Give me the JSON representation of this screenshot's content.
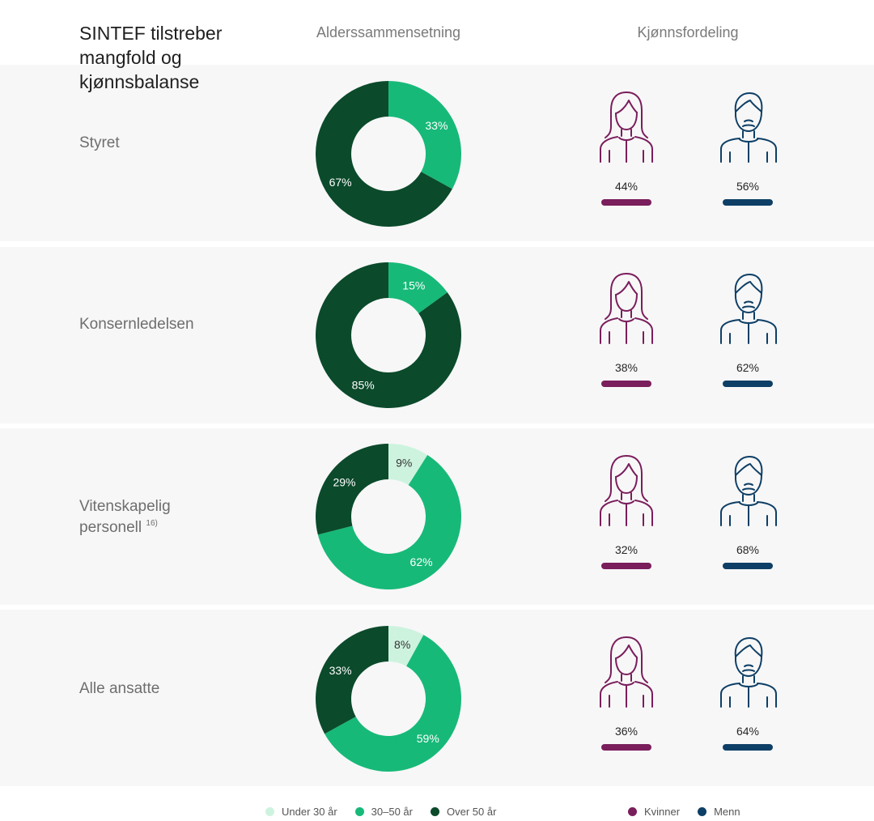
{
  "header": {
    "title": "SINTEF tilstreber mangfold og kjønnsbalanse",
    "age_heading": "Alderssammensetning",
    "gender_heading": "Kjønnsfordeling"
  },
  "colors": {
    "under30": "#cdf3df",
    "mid": "#17b978",
    "over50": "#0b4a2b",
    "women": "#7a1e5c",
    "men": "#0e3f66",
    "band": "#f7f7f7"
  },
  "rows": [
    {
      "label": "Styret",
      "note": ""
    },
    {
      "label": "Konsernledelsen",
      "note": ""
    },
    {
      "label": "Vitenskapelig personell",
      "note": "16)"
    },
    {
      "label": "Alle ansatte",
      "note": ""
    }
  ],
  "chart_data": [
    {
      "type": "pie",
      "group": "Styret",
      "categories": [
        "Under 30 år",
        "30–50 år",
        "Over 50 år"
      ],
      "values": [
        0,
        33,
        67
      ],
      "labels": [
        "",
        "33%",
        "67%"
      ],
      "gender": {
        "women": 44,
        "men": 56,
        "women_label": "44%",
        "men_label": "56%"
      }
    },
    {
      "type": "pie",
      "group": "Konsernledelsen",
      "categories": [
        "Under 30 år",
        "30–50 år",
        "Over 50 år"
      ],
      "values": [
        0,
        15,
        85
      ],
      "labels": [
        "",
        "15%",
        "85%"
      ],
      "gender": {
        "women": 38,
        "men": 62,
        "women_label": "38%",
        "men_label": "62%"
      }
    },
    {
      "type": "pie",
      "group": "Vitenskapelig personell",
      "categories": [
        "Under 30 år",
        "30–50 år",
        "Over 50 år"
      ],
      "values": [
        9,
        62,
        29
      ],
      "labels": [
        "9%",
        "62%",
        "29%"
      ],
      "gender": {
        "women": 32,
        "men": 68,
        "women_label": "32%",
        "men_label": "68%"
      }
    },
    {
      "type": "pie",
      "group": "Alle ansatte",
      "categories": [
        "Under 30 år",
        "30–50 år",
        "Over 50 år"
      ],
      "values": [
        8,
        59,
        33
      ],
      "labels": [
        "8%",
        "59%",
        "33%"
      ],
      "gender": {
        "women": 36,
        "men": 64,
        "women_label": "36%",
        "men_label": "64%"
      }
    }
  ],
  "legend": {
    "age": [
      "Under 30 år",
      "30–50 år",
      "Over 50 år"
    ],
    "gender": [
      "Kvinner",
      "Menn"
    ]
  },
  "icons": {
    "woman": "woman-icon",
    "man": "man-icon"
  }
}
